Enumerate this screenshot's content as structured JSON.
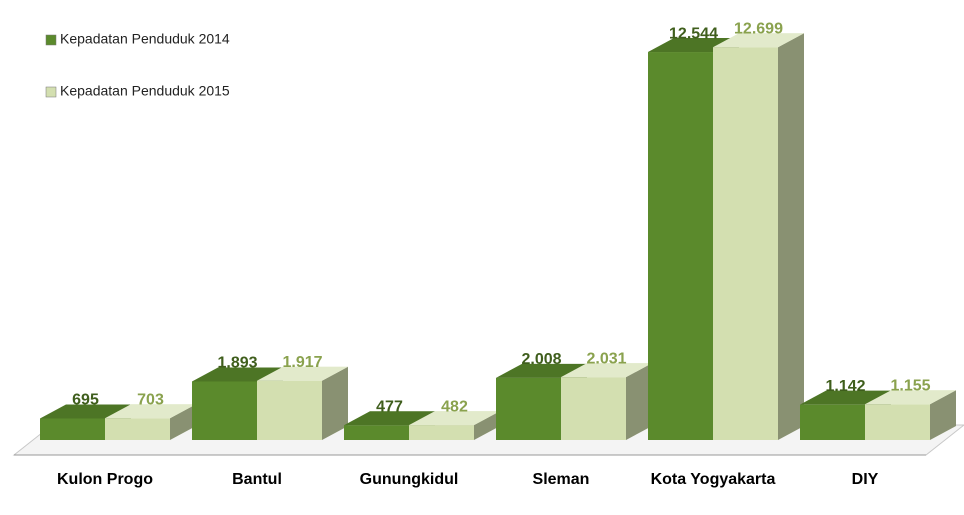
{
  "chart_data": {
    "type": "bar3d",
    "categories": [
      "Kulon Progo",
      "Bantul",
      "Gunungkidul",
      "Sleman",
      "Kota Yogyakarta",
      "DIY"
    ],
    "series": [
      {
        "name": "Kepadatan Penduduk 2014",
        "color": "#5b8a2c",
        "label_color": "#3f5e1c",
        "values": [
          695,
          1893,
          477,
          2008,
          12544,
          1142
        ],
        "value_labels": [
          "695",
          "1.893",
          "477",
          "2.008",
          "12.544",
          "1.142"
        ]
      },
      {
        "name": "Kepadatan Penduduk 2015",
        "color": "#d3dfb0",
        "label_color": "#8aa24e",
        "values": [
          703,
          1917,
          482,
          2031,
          12699,
          1155
        ],
        "value_labels": [
          "703",
          "1.917",
          "482",
          "2.031",
          "12.699",
          "1.155"
        ]
      }
    ],
    "ylim": [
      0,
      14000
    ],
    "legend": "top-left"
  }
}
